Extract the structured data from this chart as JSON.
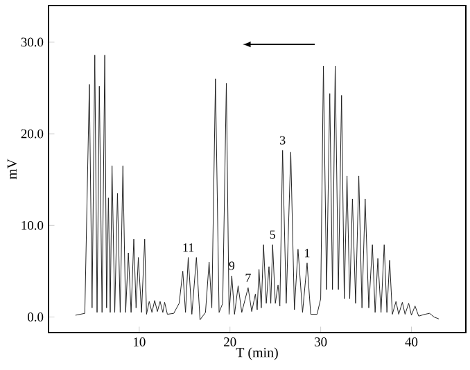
{
  "chart_data": {
    "type": "line",
    "xlabel": "T (min)",
    "ylabel": "mV",
    "color": "#222222",
    "x": [
      3,
      4,
      4.5,
      4.8,
      5.1,
      5.35,
      5.6,
      5.9,
      6.2,
      6.4,
      6.6,
      6.8,
      7.0,
      7.3,
      7.6,
      7.9,
      8.2,
      8.5,
      8.8,
      9.1,
      9.4,
      9.65,
      9.9,
      10.25,
      10.6,
      10.8,
      11.1,
      11.4,
      11.7,
      12.0,
      12.3,
      12.6,
      12.8,
      13.1,
      13.8,
      14.4,
      14.8,
      15.1,
      15.4,
      15.8,
      16.3,
      16.7,
      17.3,
      17.7,
      18.0,
      18.4,
      18.8,
      19.2,
      19.6,
      19.9,
      20.2,
      20.5,
      20.9,
      21.3,
      22.0,
      22.4,
      22.8,
      23.0,
      23.2,
      23.45,
      23.7,
      24.0,
      24.3,
      24.5,
      24.7,
      25.0,
      25.3,
      25.5,
      25.8,
      26.2,
      26.7,
      27.1,
      27.5,
      28.0,
      28.5,
      28.9,
      29.6,
      30.0,
      30.3,
      30.65,
      31.0,
      31.3,
      31.6,
      31.95,
      32.3,
      32.6,
      32.9,
      33.2,
      33.5,
      33.85,
      34.2,
      34.55,
      34.9,
      35.3,
      35.7,
      36.0,
      36.3,
      36.65,
      37.0,
      37.3,
      37.6,
      37.9,
      38.3,
      38.6,
      39.0,
      39.3,
      39.7,
      40.0,
      40.4,
      40.8,
      41.5,
      42,
      42.5,
      43
    ],
    "values": [
      0.2,
      0.4,
      25.4,
      1,
      28.6,
      0.5,
      25.2,
      0.5,
      28.6,
      1,
      13,
      0.5,
      16.5,
      0.5,
      13.5,
      0.5,
      16.5,
      0.5,
      7,
      0.5,
      8.5,
      1,
      6.5,
      0.5,
      8.5,
      0.3,
      1.7,
      0.5,
      1.8,
      0.6,
      1.7,
      0.5,
      1.6,
      0.3,
      0.4,
      1.5,
      5,
      0.5,
      6.5,
      0.3,
      6.5,
      -0.3,
      0.5,
      6,
      1,
      26,
      0.5,
      1.5,
      25.5,
      0.3,
      4.5,
      0.3,
      3.4,
      0.5,
      3.2,
      0.6,
      2.5,
      0.8,
      5.2,
      1,
      7.9,
      1.5,
      5.5,
      1.5,
      7.9,
      1.5,
      3.5,
      1.2,
      18.2,
      1.5,
      18,
      0.8,
      7.4,
      0.5,
      5.9,
      0.3,
      0.3,
      2,
      27.4,
      3,
      24.4,
      3,
      27.4,
      3,
      24.2,
      2,
      15.4,
      2,
      12.9,
      1.5,
      15.4,
      1,
      12.9,
      1,
      7.9,
      0.5,
      6.4,
      0.5,
      7.9,
      0.5,
      6.2,
      0.3,
      1.7,
      0.3,
      1.6,
      0.3,
      1.5,
      0.2,
      1.2,
      0.1,
      0.3,
      0.4,
      0,
      -0.2
    ],
    "xlim": [
      0,
      46
    ],
    "ylim": [
      -1.7,
      34
    ],
    "xticks": [
      10,
      20,
      30,
      40
    ],
    "yticks": [
      {
        "value": 0,
        "label": "0.0"
      },
      {
        "value": 10,
        "label": "10.0"
      },
      {
        "value": 20,
        "label": "20.0"
      },
      {
        "value": 30,
        "label": "30.0"
      }
    ],
    "annotations": [
      {
        "text": "11",
        "x": 15.4,
        "y": 6.5
      },
      {
        "text": "9",
        "x": 20.2,
        "y": 4.5
      },
      {
        "text": "7",
        "x": 22.0,
        "y": 3.2
      },
      {
        "text": "5",
        "x": 24.7,
        "y": 7.9
      },
      {
        "text": "3",
        "x": 25.8,
        "y": 18.2
      },
      {
        "text": "1",
        "x": 28.5,
        "y": 5.9
      }
    ]
  }
}
